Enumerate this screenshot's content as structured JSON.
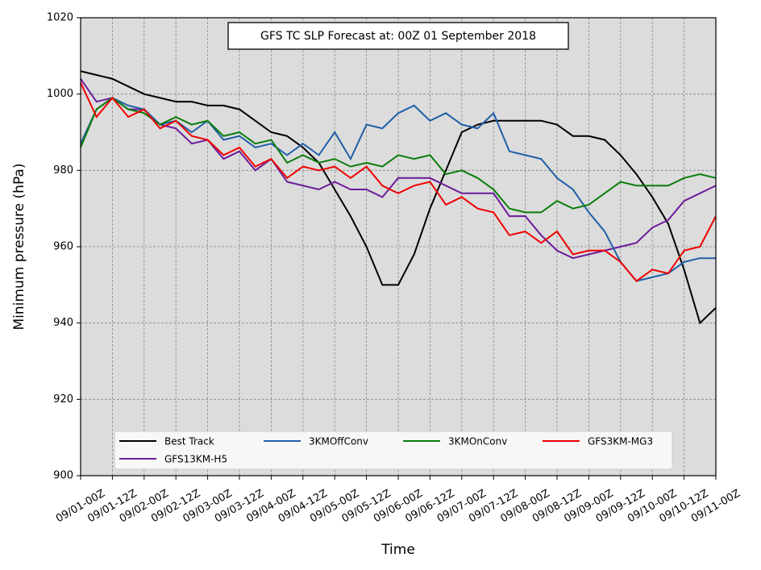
{
  "chart_data": {
    "type": "line",
    "title": "GFS TC SLP Forecast at: 00Z 01 September 2018",
    "xlabel": "Time",
    "ylabel": "Minimum pressure (hPa)",
    "categories": [
      "09/01-00Z",
      null,
      "09/01-12Z",
      null,
      "09/02-00Z",
      null,
      "09/02-12Z",
      null,
      "09/03-00Z",
      null,
      "09/03-12Z",
      null,
      "09/04-00Z",
      null,
      "09/04-12Z",
      null,
      "09/05-00Z",
      null,
      "09/05-12Z",
      null,
      "09/06-00Z",
      null,
      "09/06-12Z",
      null,
      "09/07-00Z",
      null,
      "09/07-12Z",
      null,
      "09/08-00Z",
      null,
      "09/08-12Z",
      null,
      "09/09-00Z",
      null,
      "09/09-12Z",
      null,
      "09/10-00Z",
      null,
      "09/10-12Z",
      null,
      "09/11-00Z"
    ],
    "series": [
      {
        "name": "Best Track",
        "color": "#000000",
        "values": [
          1006,
          1005,
          1004,
          1002,
          1000,
          999,
          998,
          998,
          997,
          997,
          996,
          993,
          990,
          989,
          986,
          982,
          975,
          968,
          960,
          950,
          950,
          958,
          970,
          980,
          990,
          992,
          993,
          993,
          993,
          993,
          992,
          989,
          989,
          988,
          984,
          979,
          973,
          966,
          954,
          940,
          944
        ]
      },
      {
        "name": "GFS13KM-H5",
        "color": "#6a1b9a",
        "values": [
          1004,
          998,
          999,
          996,
          996,
          992,
          991,
          987,
          988,
          983,
          985,
          980,
          983,
          977,
          976,
          975,
          977,
          975,
          975,
          973,
          978,
          978,
          978,
          976,
          974,
          974,
          974,
          968,
          968,
          963,
          959,
          957,
          958,
          959,
          960,
          961,
          965,
          967,
          972,
          974,
          976
        ]
      },
      {
        "name": "3KMOffConv",
        "color": "#1f5fa8",
        "values": [
          987,
          996,
          999,
          997,
          996,
          992,
          993,
          990,
          993,
          988,
          989,
          986,
          987,
          984,
          987,
          984,
          990,
          983,
          992,
          991,
          995,
          997,
          993,
          995,
          992,
          991,
          995,
          985,
          984,
          983,
          978,
          975,
          969,
          964,
          956,
          951,
          952,
          953,
          956,
          957,
          957
        ]
      },
      {
        "name": "3KMOnConv",
        "color": "#0a7d0a",
        "values": [
          986,
          996,
          999,
          996,
          995,
          992,
          994,
          992,
          993,
          989,
          990,
          987,
          988,
          982,
          984,
          982,
          983,
          981,
          982,
          981,
          984,
          983,
          984,
          979,
          980,
          978,
          975,
          970,
          969,
          969,
          972,
          970,
          971,
          974,
          977,
          976,
          976,
          976,
          978,
          979,
          978
        ]
      },
      {
        "name": "GFS3KM-MG3",
        "color": "#f00000",
        "values": [
          1003,
          994,
          999,
          994,
          996,
          991,
          993,
          989,
          988,
          984,
          986,
          981,
          983,
          978,
          981,
          980,
          981,
          978,
          981,
          976,
          974,
          976,
          977,
          971,
          973,
          970,
          969,
          963,
          964,
          961,
          964,
          958,
          959,
          959,
          956,
          951,
          954,
          953,
          959,
          960,
          968
        ]
      }
    ],
    "ylim": [
      900,
      1020
    ],
    "yticks": [
      900,
      920,
      940,
      960,
      980,
      1000,
      1020
    ],
    "grid": true
  }
}
